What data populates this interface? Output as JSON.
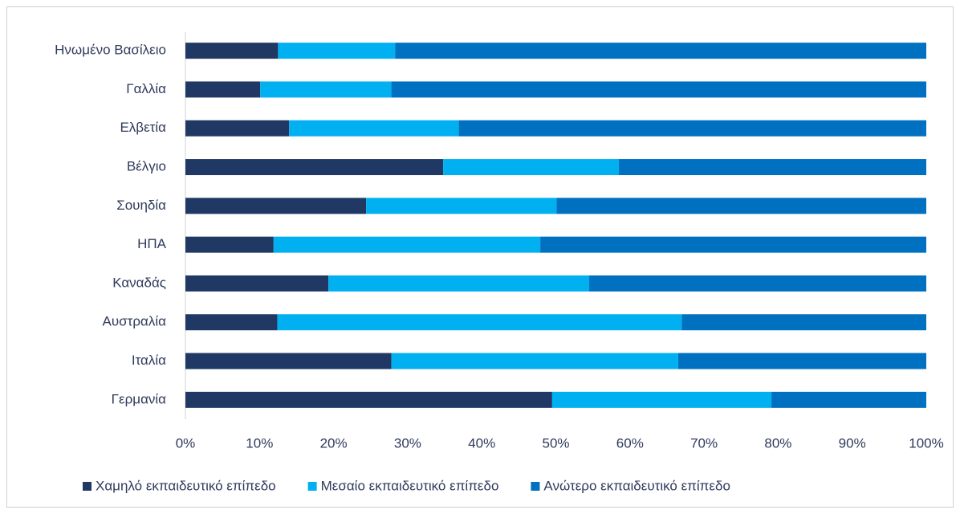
{
  "chart_data": {
    "type": "bar",
    "orientation": "horizontal",
    "stacked": true,
    "categories": [
      "Ηνωμένο Βασίλειο",
      "Γαλλία",
      "Ελβετία",
      "Βέλγιο",
      "Σουηδία",
      "ΗΠΑ",
      "Καναδάς",
      "Αυστραλία",
      "Ιταλία",
      "Γερμανία"
    ],
    "series": [
      {
        "name": "Χαμηλό εκπαιδευτικό επίπεδο",
        "color": "#203864",
        "values": [
          12.5,
          10.1,
          14.0,
          34.8,
          24.4,
          11.9,
          19.3,
          12.4,
          27.8,
          49.5
        ]
      },
      {
        "name": "Μεσαίο εκπαιδευτικό επίπεδο",
        "color": "#00b0f0",
        "values": [
          15.8,
          17.7,
          22.9,
          23.7,
          25.7,
          36.0,
          35.2,
          54.6,
          38.7,
          29.6
        ]
      },
      {
        "name": "Ανώτερο εκπαιδευτικό επίπεδο",
        "color": "#0070c0",
        "values": [
          71.7,
          72.2,
          63.1,
          41.5,
          49.9,
          52.1,
          45.5,
          33.0,
          33.5,
          20.9
        ]
      }
    ],
    "xlim": [
      0,
      100
    ],
    "xticks": [
      {
        "value": 0,
        "label": "0%"
      },
      {
        "value": 10,
        "label": "10%"
      },
      {
        "value": 20,
        "label": "20%"
      },
      {
        "value": 30,
        "label": "30%"
      },
      {
        "value": 40,
        "label": "40%"
      },
      {
        "value": 50,
        "label": "50%"
      },
      {
        "value": 60,
        "label": "60%"
      },
      {
        "value": 70,
        "label": "70%"
      },
      {
        "value": 80,
        "label": "80%"
      },
      {
        "value": 90,
        "label": "90%"
      },
      {
        "value": 100,
        "label": "100%"
      }
    ],
    "legend": "bottom"
  }
}
